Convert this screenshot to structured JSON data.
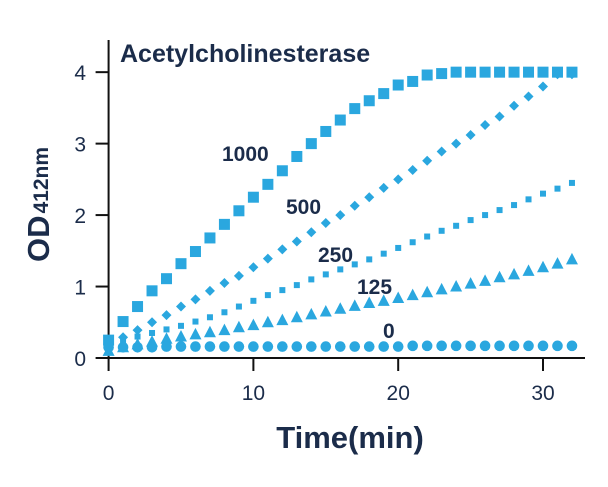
{
  "chart_data": {
    "type": "scatter",
    "title": "Acetylcholinesterase",
    "xlabel": "Time(min)",
    "ylabel_main": "OD",
    "ylabel_sub": "412nm",
    "xlim": [
      -0.8,
      32.9
    ],
    "ylim": [
      0,
      4.45
    ],
    "xticks": [
      0,
      10,
      20,
      30
    ],
    "yticks": [
      0,
      1,
      2,
      3,
      4
    ],
    "grid": false,
    "marker_color": "#2aa7df",
    "text_color": "#1b2c4a",
    "x": [
      0,
      1,
      2,
      3,
      4,
      5,
      6,
      7,
      8,
      9,
      10,
      11,
      12,
      13,
      14,
      15,
      16,
      17,
      18,
      19,
      20,
      21,
      22,
      23,
      24,
      25,
      26,
      27,
      28,
      29,
      30,
      31,
      32
    ],
    "series": [
      {
        "name": "1000",
        "marker": "square-large",
        "values": [
          0.25,
          0.51,
          0.72,
          0.94,
          1.11,
          1.32,
          1.49,
          1.68,
          1.87,
          2.06,
          2.25,
          2.43,
          2.62,
          2.82,
          3.0,
          3.17,
          3.33,
          3.49,
          3.6,
          3.7,
          3.82,
          3.87,
          3.96,
          3.98,
          4.0,
          4.0,
          4.0,
          4.0,
          4.0,
          4.0,
          4.0,
          4.0,
          4.0
        ]
      },
      {
        "name": "500",
        "marker": "diamond",
        "values": [
          0.17,
          0.29,
          0.39,
          0.5,
          0.6,
          0.72,
          0.82,
          0.94,
          1.05,
          1.15,
          1.27,
          1.39,
          1.52,
          1.63,
          1.76,
          1.89,
          2.0,
          2.13,
          2.25,
          2.38,
          2.5,
          2.63,
          2.76,
          2.89,
          3.0,
          3.12,
          3.26,
          3.38,
          3.53,
          3.66,
          3.8,
          3.97,
          3.97
        ]
      },
      {
        "name": "250",
        "marker": "square-small",
        "values": [
          0.2,
          0.25,
          0.3,
          0.35,
          0.4,
          0.45,
          0.51,
          0.57,
          0.64,
          0.72,
          0.8,
          0.88,
          0.95,
          1.02,
          1.1,
          1.17,
          1.24,
          1.31,
          1.38,
          1.46,
          1.54,
          1.62,
          1.7,
          1.78,
          1.85,
          1.93,
          2.0,
          2.07,
          2.14,
          2.22,
          2.3,
          2.37,
          2.45
        ]
      },
      {
        "name": "125",
        "marker": "triangle",
        "values": [
          0.1,
          0.15,
          0.19,
          0.23,
          0.27,
          0.3,
          0.33,
          0.36,
          0.39,
          0.43,
          0.46,
          0.5,
          0.53,
          0.57,
          0.61,
          0.65,
          0.69,
          0.73,
          0.77,
          0.8,
          0.84,
          0.88,
          0.92,
          0.96,
          1.0,
          1.04,
          1.08,
          1.13,
          1.17,
          1.22,
          1.27,
          1.32,
          1.38
        ]
      },
      {
        "name": "0",
        "marker": "circle",
        "values": [
          0.15,
          0.15,
          0.15,
          0.15,
          0.16,
          0.16,
          0.16,
          0.16,
          0.16,
          0.16,
          0.16,
          0.16,
          0.16,
          0.16,
          0.16,
          0.16,
          0.16,
          0.16,
          0.16,
          0.16,
          0.16,
          0.17,
          0.17,
          0.17,
          0.17,
          0.17,
          0.17,
          0.17,
          0.17,
          0.17,
          0.17,
          0.17,
          0.17
        ]
      }
    ]
  }
}
